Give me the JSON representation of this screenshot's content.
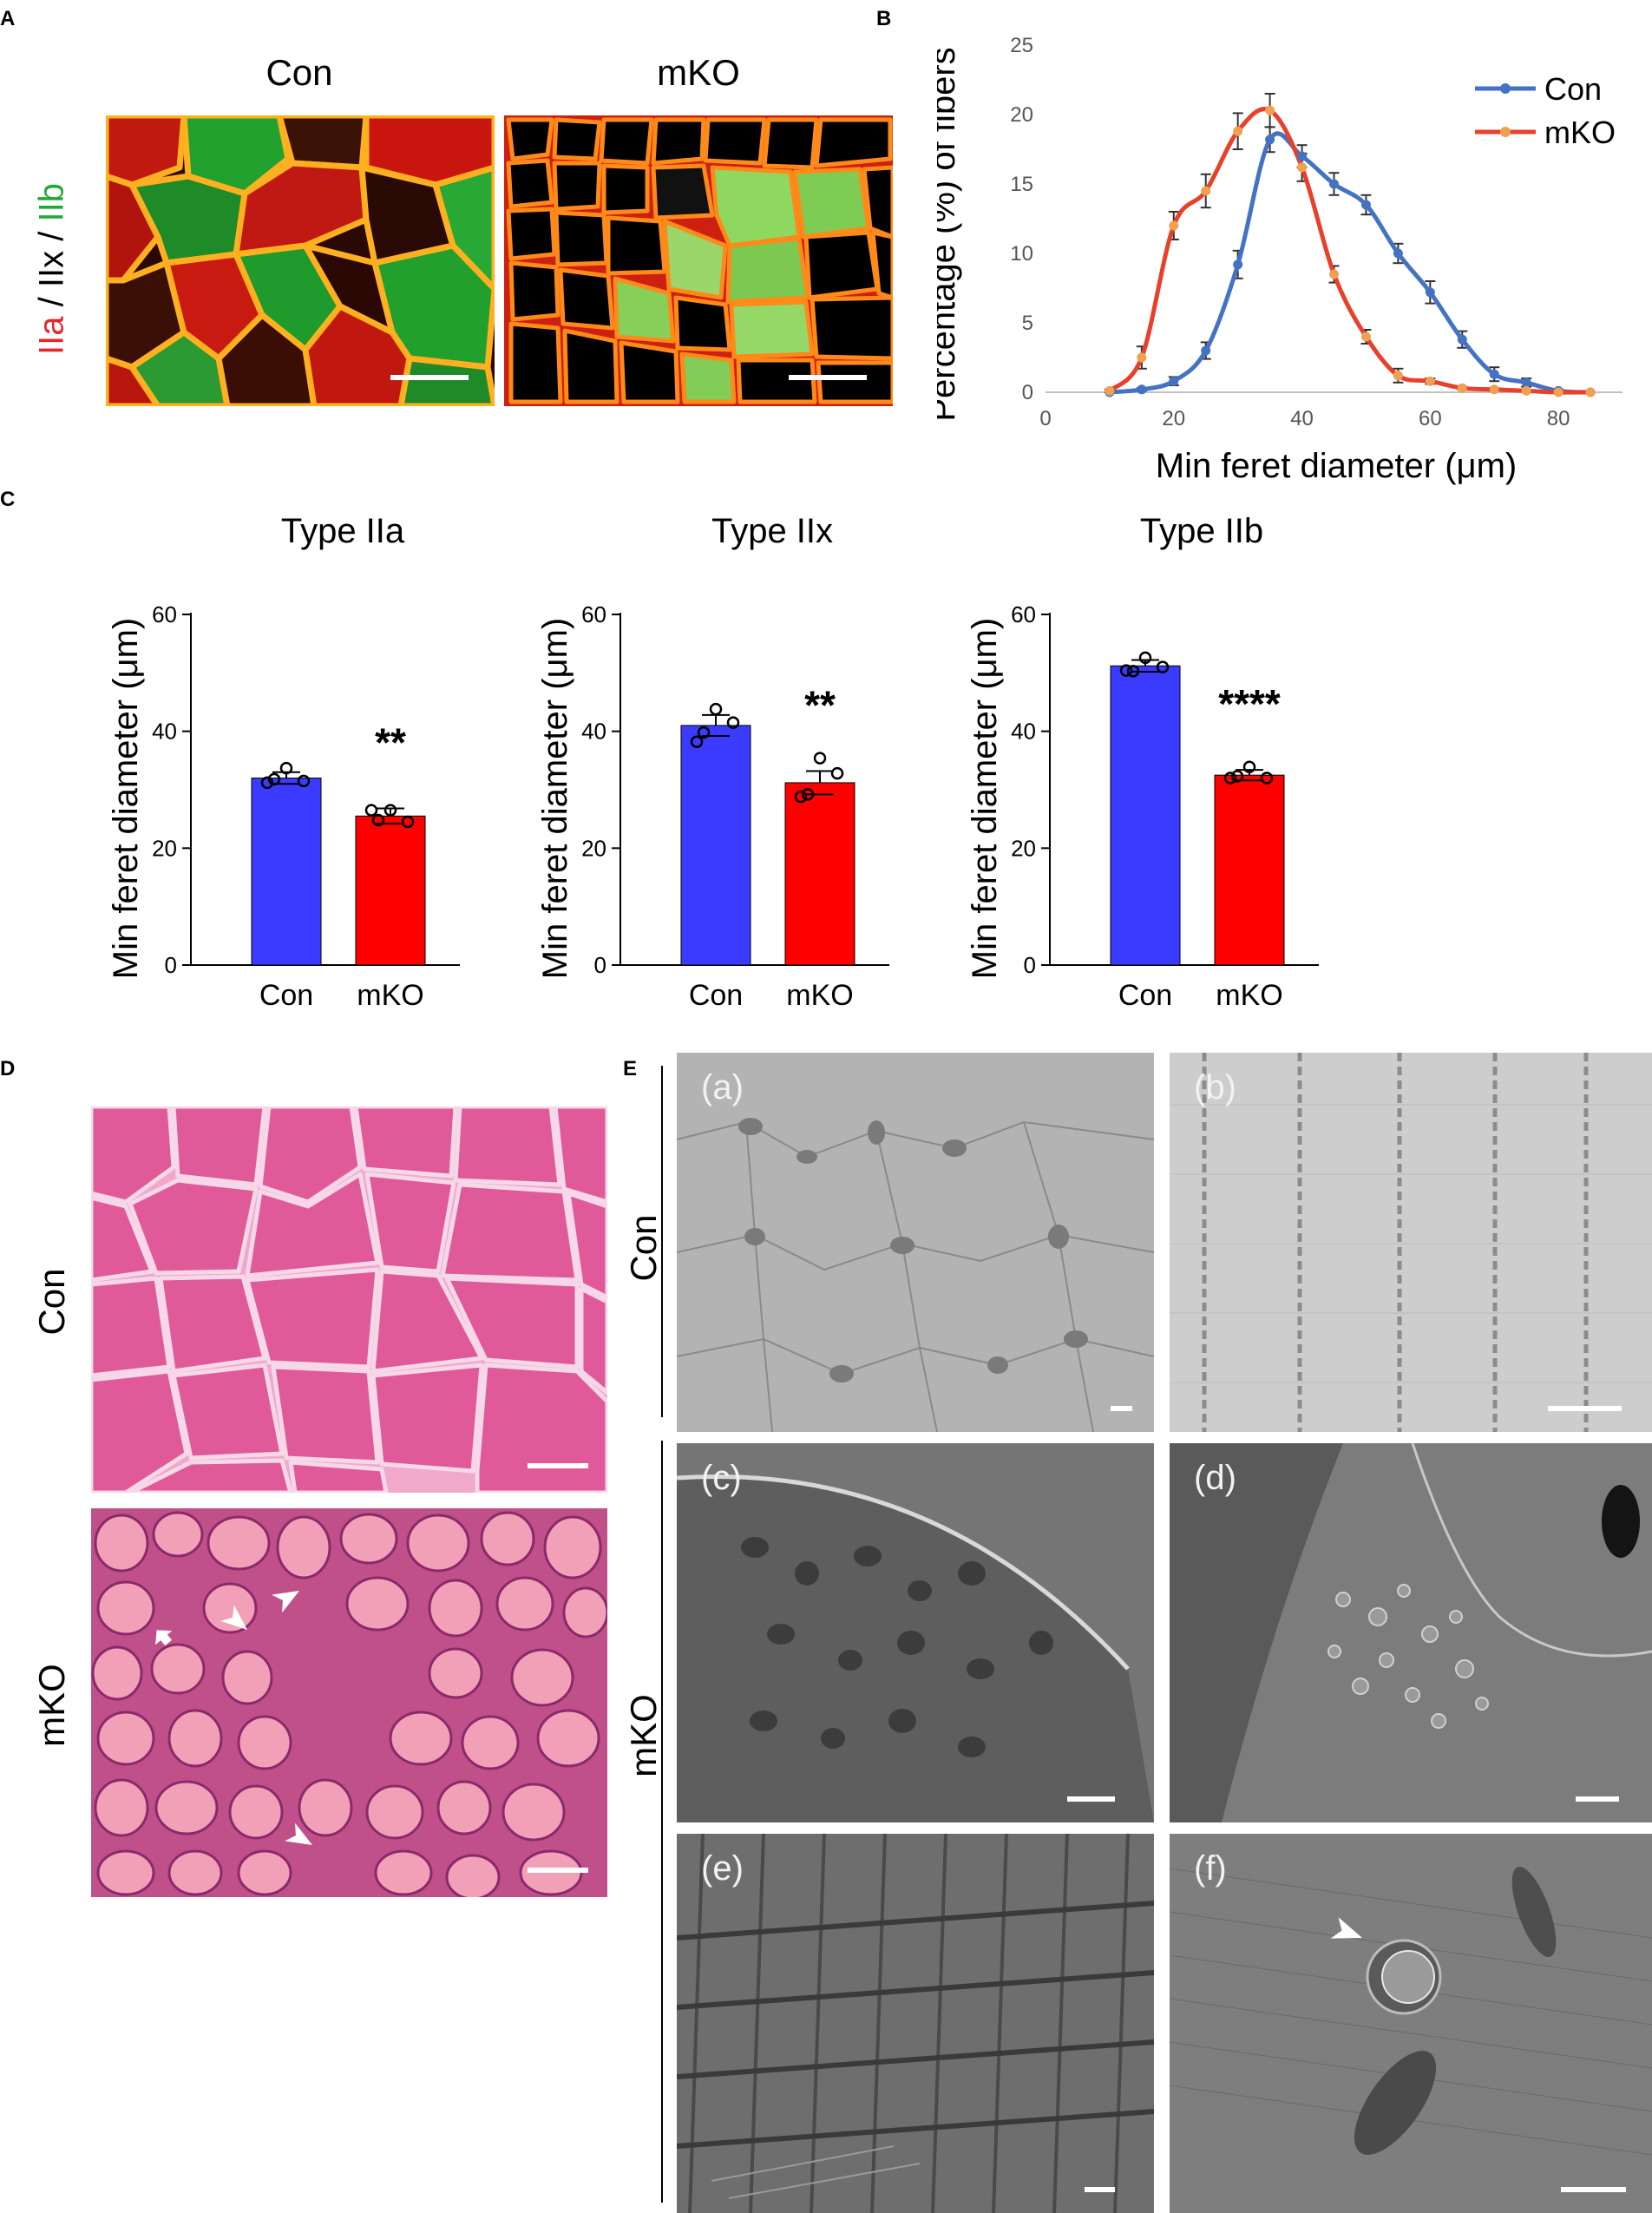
{
  "panel_letters": {
    "a": "A",
    "b": "B",
    "c": "C",
    "d": "D",
    "e": "E"
  },
  "panelA": {
    "con_title": "Con",
    "mko_title": "mKO",
    "side_label": {
      "iia": "IIa",
      "sep1": " / ",
      "iix": "IIx",
      "sep2": " / ",
      "iib": "IIb"
    },
    "colors": {
      "iia": "#e8262a",
      "iib": "#22a83a",
      "membrane": "#ff4a1a"
    }
  },
  "panelC": {
    "titles": [
      "Type IIa",
      "Type IIx",
      "Type IIb"
    ],
    "ylabel": "Min feret diameter (μm)",
    "yticks": [
      "0",
      "20",
      "40",
      "60"
    ],
    "categories": [
      "Con",
      "mKO"
    ],
    "significance": [
      "**",
      "**",
      "****"
    ]
  },
  "panelD": {
    "con_label": "Con",
    "mko_label": "mKO",
    "stain_color": "#e05a9a"
  },
  "panelE": {
    "con_label": "Con",
    "mko_label": "mKO",
    "subpanels": [
      "(a)",
      "(b)",
      "(c)",
      "(d)",
      "(e)",
      "(f)"
    ]
  },
  "chart_data": [
    {
      "type": "line",
      "panel": "B",
      "xlabel": "Min feret diameter (μm)",
      "ylabel": "Percentage (%) of fibers",
      "xlim": [
        0,
        90
      ],
      "ylim": [
        0,
        25
      ],
      "xticks": [
        0,
        20,
        40,
        60,
        80
      ],
      "yticks": [
        0,
        5,
        10,
        15,
        20,
        25
      ],
      "legend_position": "top-right",
      "series": [
        {
          "name": "Con",
          "color": "#4472c4",
          "x": [
            10,
            15,
            20,
            25,
            30,
            35,
            40,
            45,
            50,
            55,
            60,
            65,
            70,
            75,
            80,
            85
          ],
          "y": [
            0,
            0.2,
            0.8,
            3.0,
            9.2,
            18.2,
            17.0,
            15.0,
            13.5,
            10.0,
            7.2,
            3.8,
            1.3,
            0.7,
            0.1,
            0
          ],
          "err": [
            0,
            0.1,
            0.3,
            0.6,
            1.0,
            0.9,
            0.8,
            0.8,
            0.7,
            0.7,
            0.8,
            0.6,
            0.5,
            0.3,
            0.1,
            0
          ]
        },
        {
          "name": "mKO",
          "color": "#e8402a",
          "x": [
            10,
            15,
            20,
            25,
            30,
            35,
            40,
            45,
            50,
            55,
            60,
            65,
            70,
            75,
            80,
            85
          ],
          "y": [
            0.1,
            2.5,
            12.0,
            14.5,
            18.8,
            20.3,
            16.2,
            8.5,
            4.0,
            1.2,
            0.8,
            0.3,
            0.2,
            0.1,
            0,
            0
          ],
          "err": [
            0.1,
            0.8,
            1.0,
            1.2,
            1.3,
            1.2,
            1.0,
            0.6,
            0.5,
            0.5,
            0.2,
            0.1,
            0.1,
            0.05,
            0,
            0
          ]
        }
      ]
    },
    {
      "type": "bar",
      "panel": "C",
      "title": "Type IIa",
      "ylabel": "Min feret diameter (μm)",
      "ylim": [
        0,
        60
      ],
      "categories": [
        "Con",
        "mKO"
      ],
      "values": [
        32.0,
        25.5
      ],
      "sem": [
        1.0,
        1.3
      ],
      "points": [
        [
          33.7,
          31.5,
          31.8,
          31.2
        ],
        [
          26.5,
          24.5,
          24.8,
          26.5
        ]
      ],
      "colors": [
        "#3b3bff",
        "#ff0000"
      ],
      "significance": "**"
    },
    {
      "type": "bar",
      "panel": "C",
      "title": "Type IIx",
      "ylabel": "Min feret diameter (μm)",
      "ylim": [
        0,
        60
      ],
      "categories": [
        "Con",
        "mKO"
      ],
      "values": [
        41.0,
        31.2
      ],
      "sem": [
        1.8,
        2.0
      ],
      "points": [
        [
          43.8,
          41.5,
          39.8,
          38.2
        ],
        [
          35.4,
          32.8,
          29.2,
          28.8
        ]
      ],
      "colors": [
        "#3b3bff",
        "#ff0000"
      ],
      "significance": "**"
    },
    {
      "type": "bar",
      "panel": "C",
      "title": "Type IIb",
      "ylabel": "Min feret diameter (μm)",
      "ylim": [
        0,
        60
      ],
      "categories": [
        "Con",
        "mKO"
      ],
      "values": [
        51.2,
        32.5
      ],
      "sem": [
        1.0,
        0.9
      ],
      "points": [
        [
          52.6,
          51.0,
          50.3,
          50.4
        ],
        [
          33.9,
          32.0,
          32.3,
          32.0
        ]
      ],
      "colors": [
        "#3b3bff",
        "#ff0000"
      ],
      "significance": "****"
    }
  ]
}
